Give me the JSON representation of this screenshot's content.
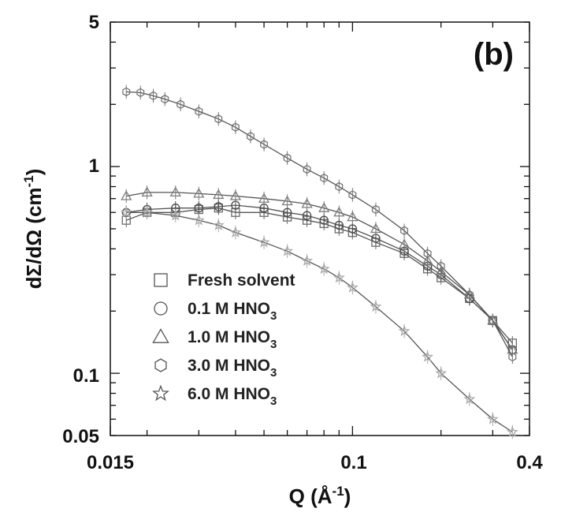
{
  "chart_data": {
    "type": "scatter",
    "panel_label": "(b)",
    "xlabel_main": "Q (Å",
    "xlabel_sup": "-1",
    "xlabel_end": ")",
    "ylabel_main": "dΣ/dΩ (cm",
    "ylabel_sup": "-1",
    "ylabel_end": ")",
    "x_scale": "log",
    "y_scale": "log",
    "xlim": [
      0.015,
      0.4
    ],
    "ylim": [
      0.05,
      5
    ],
    "x_tick_labels": [
      "0.015",
      "0.1",
      "0.4"
    ],
    "y_tick_labels": [
      "0.05",
      "0.1",
      "1",
      "5"
    ],
    "grid": false,
    "legend_position": "lower-left",
    "series": [
      {
        "name": "Fresh solvent",
        "legend_main": "Fresh solvent",
        "legend_sub": "",
        "marker": "square",
        "color": "#6a6a6a",
        "x": [
          0.017,
          0.02,
          0.025,
          0.03,
          0.035,
          0.04,
          0.05,
          0.06,
          0.07,
          0.08,
          0.09,
          0.1,
          0.12,
          0.15,
          0.18,
          0.2,
          0.25,
          0.3,
          0.35
        ],
        "y": [
          0.55,
          0.6,
          0.6,
          0.62,
          0.63,
          0.6,
          0.6,
          0.57,
          0.55,
          0.53,
          0.5,
          0.48,
          0.43,
          0.38,
          0.32,
          0.29,
          0.23,
          0.18,
          0.14
        ]
      },
      {
        "name": "0.1 M HNO3",
        "legend_main": "0.1 M HNO",
        "legend_sub": "3",
        "marker": "circle",
        "color": "#4a4a4a",
        "x": [
          0.017,
          0.02,
          0.025,
          0.03,
          0.035,
          0.04,
          0.05,
          0.06,
          0.07,
          0.08,
          0.09,
          0.1,
          0.12,
          0.15,
          0.18,
          0.2,
          0.25,
          0.3,
          0.35
        ],
        "y": [
          0.6,
          0.62,
          0.63,
          0.63,
          0.64,
          0.65,
          0.63,
          0.6,
          0.58,
          0.55,
          0.52,
          0.5,
          0.45,
          0.39,
          0.33,
          0.3,
          0.23,
          0.18,
          0.13
        ]
      },
      {
        "name": "1.0 M HNO3",
        "legend_main": "1.0 M HNO",
        "legend_sub": "3",
        "marker": "triangle",
        "color": "#7d7d7d",
        "x": [
          0.017,
          0.02,
          0.025,
          0.03,
          0.035,
          0.04,
          0.05,
          0.06,
          0.07,
          0.08,
          0.09,
          0.1,
          0.12,
          0.15,
          0.18,
          0.2,
          0.25,
          0.3,
          0.35
        ],
        "y": [
          0.72,
          0.75,
          0.75,
          0.74,
          0.73,
          0.72,
          0.7,
          0.68,
          0.66,
          0.63,
          0.6,
          0.57,
          0.5,
          0.42,
          0.35,
          0.31,
          0.24,
          0.18,
          0.13
        ]
      },
      {
        "name": "3.0 M HNO3",
        "legend_main": "3.0 M HNO",
        "legend_sub": "3",
        "marker": "hexagon",
        "color": "#777777",
        "x": [
          0.017,
          0.019,
          0.021,
          0.023,
          0.026,
          0.03,
          0.035,
          0.04,
          0.045,
          0.05,
          0.06,
          0.07,
          0.08,
          0.09,
          0.1,
          0.12,
          0.15,
          0.18,
          0.2,
          0.25,
          0.3,
          0.35
        ],
        "y": [
          2.3,
          2.28,
          2.2,
          2.12,
          2.0,
          1.85,
          1.7,
          1.55,
          1.4,
          1.28,
          1.1,
          0.97,
          0.88,
          0.8,
          0.73,
          0.62,
          0.49,
          0.38,
          0.33,
          0.24,
          0.18,
          0.12
        ]
      },
      {
        "name": "6.0 M HNO3",
        "legend_main": "6.0 M HNO",
        "legend_sub": "3",
        "marker": "star",
        "color": "#a9a9a9",
        "x": [
          0.017,
          0.02,
          0.025,
          0.03,
          0.035,
          0.04,
          0.05,
          0.06,
          0.07,
          0.08,
          0.09,
          0.1,
          0.12,
          0.15,
          0.18,
          0.2,
          0.25,
          0.3,
          0.35
        ],
        "y": [
          0.6,
          0.6,
          0.58,
          0.55,
          0.52,
          0.48,
          0.43,
          0.39,
          0.35,
          0.32,
          0.29,
          0.26,
          0.21,
          0.16,
          0.12,
          0.1,
          0.075,
          0.06,
          0.052
        ]
      }
    ]
  }
}
